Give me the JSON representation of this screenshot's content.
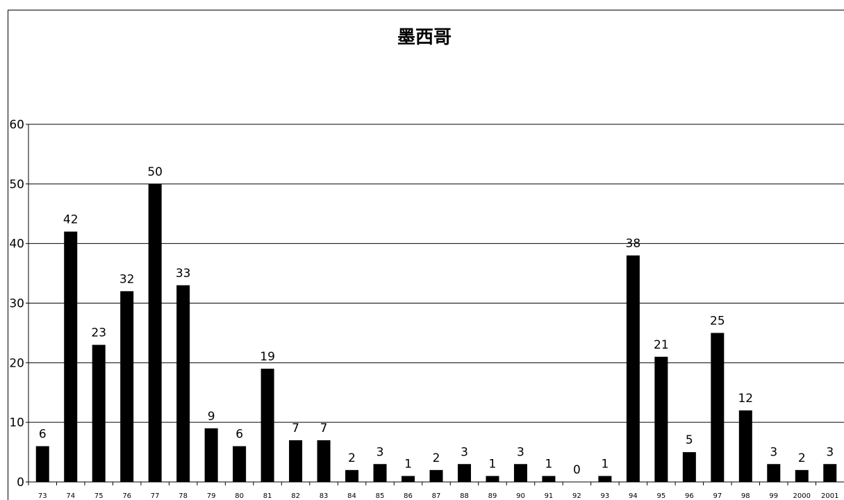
{
  "chart_data": {
    "type": "bar",
    "title": "墨西哥",
    "xlabel": "",
    "ylabel": "",
    "categories": [
      "73",
      "74",
      "75",
      "76",
      "77",
      "78",
      "79",
      "80",
      "81",
      "82",
      "83",
      "84",
      "85",
      "86",
      "87",
      "88",
      "89",
      "90",
      "91",
      "92",
      "93",
      "94",
      "95",
      "96",
      "97",
      "98",
      "99",
      "2000",
      "2001"
    ],
    "values": [
      6,
      42,
      23,
      32,
      50,
      33,
      9,
      6,
      19,
      7,
      7,
      2,
      3,
      1,
      2,
      3,
      1,
      3,
      1,
      0,
      1,
      38,
      21,
      5,
      25,
      12,
      3,
      2,
      3
    ],
    "ylim": [
      0,
      60
    ],
    "yticks": [
      0,
      10,
      20,
      30,
      40,
      50,
      60
    ],
    "grid": true,
    "bar_color": "#000000"
  }
}
